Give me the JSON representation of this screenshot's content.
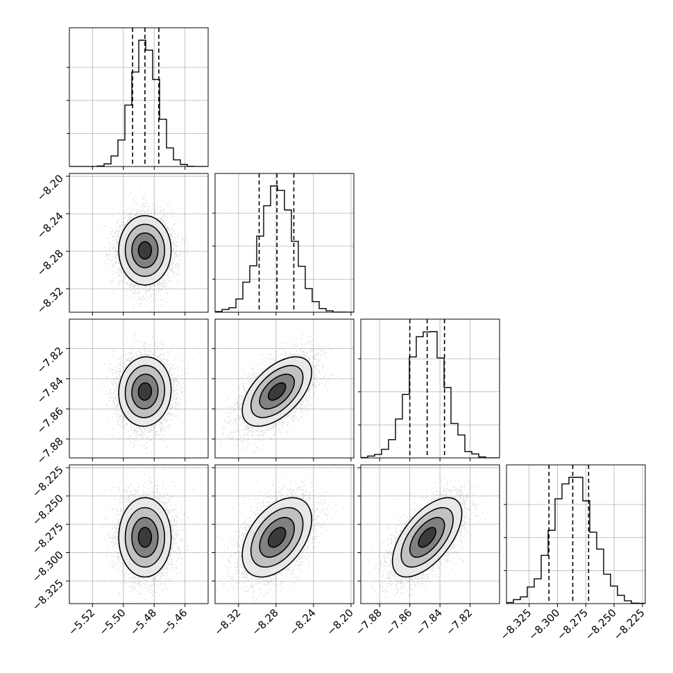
{
  "chart_data": {
    "type": "corner",
    "title": "",
    "n_params": 4,
    "parameters": [
      {
        "label": "",
        "median": -5.486,
        "q16": -5.494,
        "q84": -5.477,
        "range": [
          -5.535,
          -5.445
        ],
        "ticks": [
          -5.52,
          -5.5,
          -5.48,
          -5.46
        ],
        "tick_labels": [
          "−5.52",
          "−5.50",
          "−5.48",
          "−5.46"
        ]
      },
      {
        "label": "",
        "median": -8.279,
        "q16": -8.298,
        "q84": -8.261,
        "range": [
          -8.345,
          -8.197
        ],
        "ticks": [
          -8.32,
          -8.28,
          -8.24,
          -8.2
        ],
        "tick_labels": [
          "−8.32",
          "−8.28",
          "−8.24",
          "−8.20"
        ]
      },
      {
        "label": "",
        "median": -7.8485,
        "q16": -7.86,
        "q84": -7.837,
        "range": [
          -7.8925,
          -7.8005
        ],
        "ticks": [
          -7.88,
          -7.86,
          -7.84,
          -7.82
        ],
        "tick_labels": [
          "−7.88",
          "−7.86",
          "−7.84",
          "−7.82"
        ]
      },
      {
        "label": "",
        "median": -8.2865,
        "q16": -8.3075,
        "q84": -8.2725,
        "range": [
          -8.345,
          -8.2225
        ],
        "ticks": [
          -8.325,
          -8.3,
          -8.275,
          -8.25,
          -8.225
        ],
        "tick_labels": [
          "−8.325",
          "−8.300",
          "−8.275",
          "−8.250",
          "−8.225"
        ]
      }
    ],
    "correlations": [
      [
        1.0,
        0.0,
        0.05,
        0.0
      ],
      [
        0.0,
        1.0,
        0.55,
        0.45
      ],
      [
        0.05,
        0.55,
        1.0,
        0.6
      ],
      [
        0.0,
        0.45,
        0.6,
        1.0
      ]
    ],
    "histogram": {
      "bins": 20,
      "quantile_lines": "dashed"
    },
    "contours": {
      "levels": 3,
      "colorscale": "greys",
      "scatter_points": "light-grey"
    },
    "grid": true
  }
}
